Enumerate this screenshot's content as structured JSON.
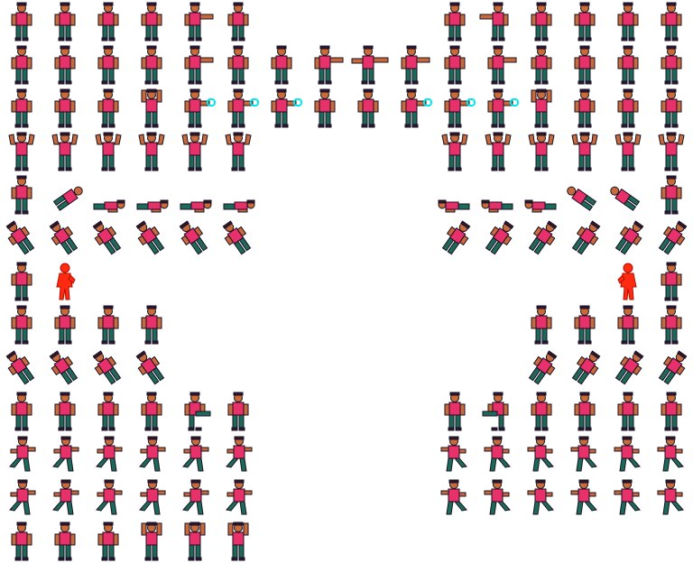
{
  "sheet": {
    "name": "character-sprite-sheet",
    "background": "#ffffff",
    "columns": 16,
    "rows": 13,
    "palette": {
      "skin": "#c86a3c",
      "shirt": "#e8306a",
      "pants": "#1e6a5a",
      "hair": "#2a1a2e",
      "outline": "#1a1020",
      "shoes": "#2a1a3e",
      "effect_cyan": "#00e8f0",
      "silhouette_red": "#ff2a10"
    },
    "rows_layout": [
      {
        "animation": "idle",
        "left": [
          "stand",
          "stand",
          "stand",
          "stand",
          "punch",
          "stand"
        ],
        "right": [
          "stand",
          "punch",
          "stand",
          "stand",
          "stand",
          "stand"
        ]
      },
      {
        "animation": "punch-combo",
        "left": [
          "stand",
          "stand",
          "stand",
          "stand",
          "punch",
          "stand",
          "stand",
          "punch",
          "punch-long",
          "punch",
          "stand",
          "punch",
          "stand",
          "stand",
          "stand",
          "stand"
        ],
        "right": []
      },
      {
        "animation": "special-effect",
        "left": [
          "stand",
          "stand",
          "stand",
          "raise",
          "fx",
          "fx",
          "fx",
          "stand",
          "stand",
          "fx",
          "fx",
          "fx",
          "raise",
          "stand",
          "stand",
          "stand"
        ],
        "right": []
      },
      {
        "animation": "flex",
        "left": [
          "flex",
          "flex",
          "flex",
          "flex",
          "flex",
          "flex"
        ],
        "right": [
          "flex",
          "flex",
          "flex",
          "flex",
          "flex",
          "flex"
        ]
      },
      {
        "animation": "knockdown",
        "left": [
          "stand",
          "fall",
          "lie",
          "lie",
          "lie",
          "lie"
        ],
        "right": [
          "lie",
          "lie",
          "lie",
          "fall",
          "fall",
          "stand"
        ]
      },
      {
        "animation": "tumble",
        "left": [
          "tumble",
          "tumble",
          "tumble",
          "tumble",
          "tumble",
          "tumble"
        ],
        "right": [
          "tumble",
          "tumble",
          "tumble",
          "tumble",
          "tumble",
          "tumble"
        ]
      },
      {
        "animation": "hit-flash",
        "left": [
          "stand",
          "silhouette"
        ],
        "right": [
          "silhouette",
          "stand"
        ]
      },
      {
        "animation": "walk",
        "left": [
          "stand",
          "stand",
          "stand",
          "stand"
        ],
        "right": [
          "stand",
          "stand",
          "stand",
          "stand"
        ]
      },
      {
        "animation": "jump-kick",
        "left": [
          "tumble",
          "tumble",
          "tumble",
          "tumble"
        ],
        "right": [
          "tumble",
          "tumble",
          "tumble",
          "tumble"
        ]
      },
      {
        "animation": "kick",
        "left": [
          "stand",
          "stand",
          "stand",
          "stand",
          "kick",
          "stand"
        ],
        "right": [
          "stand",
          "kick",
          "stand",
          "stand",
          "stand",
          "stand"
        ]
      },
      {
        "animation": "run",
        "left": [
          "run",
          "run",
          "run",
          "run",
          "run",
          "run"
        ],
        "right": [
          "run",
          "run",
          "run",
          "run",
          "run",
          "run"
        ]
      },
      {
        "animation": "dash",
        "left": [
          "run",
          "run",
          "run",
          "run",
          "run",
          "run"
        ],
        "right": [
          "run",
          "run",
          "run",
          "run",
          "run",
          "run"
        ]
      },
      {
        "animation": "taunt",
        "left": [
          "stand",
          "stand",
          "stand",
          "raise",
          "raise",
          "raise"
        ],
        "right": []
      }
    ]
  }
}
